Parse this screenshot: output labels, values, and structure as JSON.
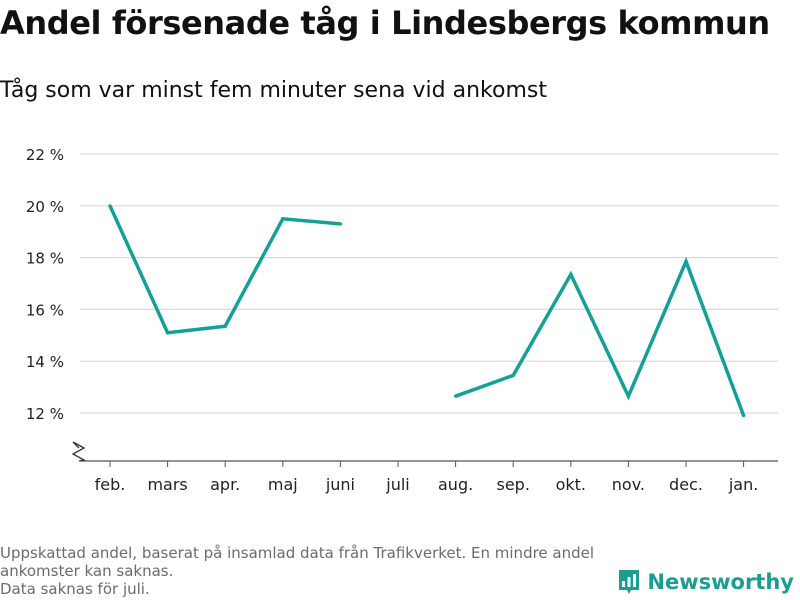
{
  "header": {
    "title": "Andel försenade tåg i Lindesbergs kommun",
    "subtitle": "Tåg som var minst fem minuter sena vid ankomst"
  },
  "footer": {
    "note_line1": "Uppskattad andel, baserat på insamlad data från Trafikverket. En mindre andel ankomster kan saknas.",
    "note_line2": "Data saknas för juli."
  },
  "brand": {
    "name": "Newsworthy",
    "icon": "bar-chart-icon",
    "color": "#1a9e92"
  },
  "colors": {
    "line": "#13a197",
    "grid": "#d9d9d9",
    "axis": "#555555"
  },
  "chart_data": {
    "type": "line",
    "categories": [
      "feb.",
      "mars",
      "apr.",
      "maj",
      "juni",
      "juli",
      "aug.",
      "sep.",
      "okt.",
      "nov.",
      "dec.",
      "jan."
    ],
    "series": [
      {
        "values": [
          20.0,
          15.1,
          15.35,
          19.5,
          19.3,
          null,
          12.65,
          13.45,
          17.35,
          12.65,
          17.85,
          11.9
        ]
      }
    ],
    "y_ticks": [
      12,
      14,
      16,
      18,
      20,
      22
    ],
    "y_tick_format": "{v} %",
    "ylim": [
      10.2,
      22.6
    ],
    "axis_break": true,
    "grid": true,
    "legend": "none"
  }
}
